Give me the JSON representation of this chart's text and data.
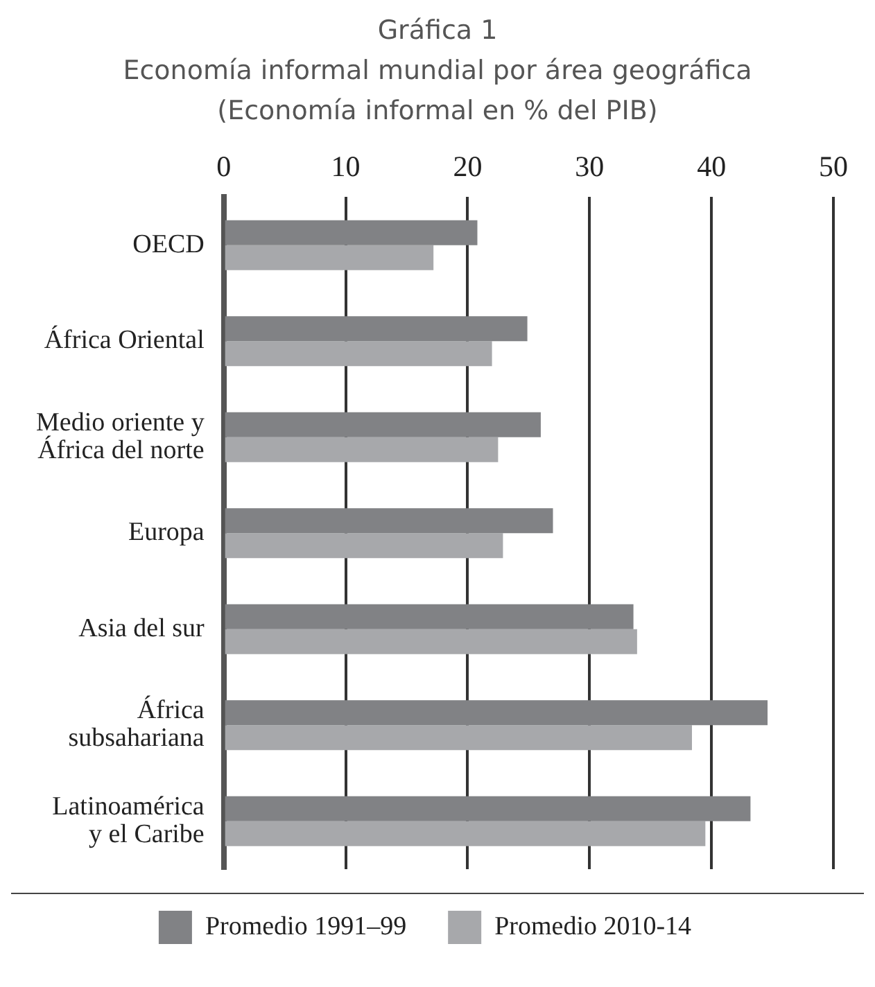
{
  "chart_data": {
    "type": "bar",
    "orientation": "horizontal",
    "title": "Gráfica 1",
    "subtitle": "Economía informal mundial por área geográfica\n(Economía informal en % del PIB)",
    "categories": [
      "OECD",
      "África Oriental",
      "Medio oriente y\nÁfrica del norte",
      "Europa",
      "Asia del sur",
      "África\nsubsahariana",
      "Latinoamérica\ny el Caribe"
    ],
    "series": [
      {
        "name": "Promedio 1991–99",
        "color": "#818285",
        "values": [
          20.8,
          24.9,
          26.0,
          27.0,
          33.6,
          44.6,
          43.2
        ]
      },
      {
        "name": "Promedio 2010-14",
        "color": "#a7a8ab",
        "values": [
          17.2,
          22.0,
          22.5,
          22.9,
          33.9,
          38.4,
          39.5
        ]
      }
    ],
    "xlim": [
      0,
      50
    ],
    "xticks": [
      0,
      10,
      20,
      30,
      40,
      50
    ],
    "grid": "x",
    "legend": "bottom"
  }
}
